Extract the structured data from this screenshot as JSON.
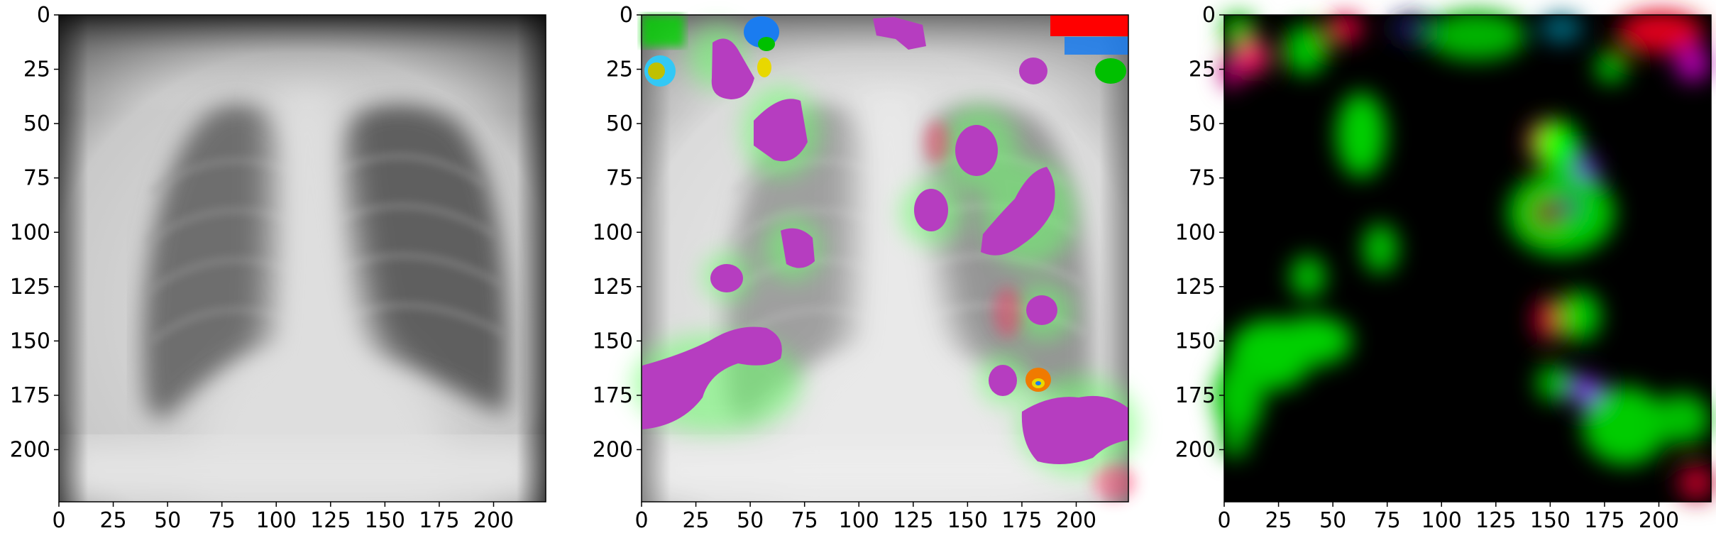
{
  "panels": [
    {
      "id": "xray",
      "kind": "grayscale"
    },
    {
      "id": "overlay",
      "kind": "overlay"
    },
    {
      "id": "heatmap",
      "kind": "heatmap"
    }
  ],
  "axis": {
    "xlim": [
      0,
      224
    ],
    "ylim": [
      224,
      0
    ],
    "xticks": [
      0,
      25,
      50,
      75,
      100,
      125,
      150,
      175,
      200
    ],
    "yticks": [
      0,
      25,
      50,
      75,
      100,
      125,
      150,
      175,
      200
    ]
  },
  "colors": {
    "segment_fill": "#b63dc0",
    "heat_green": "#00e600",
    "heat_red": "#e0003a",
    "heat_magenta": "#c0007a",
    "heat_violet": "#7a2aff",
    "blob_blue": "#1a7cf0",
    "blob_cyan": "#33c8f5",
    "blob_yellow": "#e8d800",
    "blob_orange": "#f07a00"
  }
}
